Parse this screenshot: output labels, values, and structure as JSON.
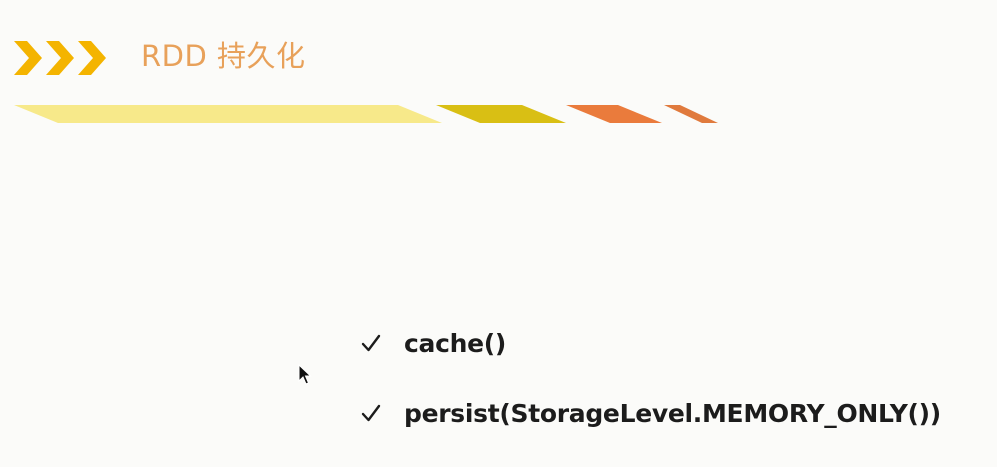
{
  "slide": {
    "title": "RDD 持久化"
  },
  "decor": {
    "chevron_color": "#f4b400",
    "title_color": "#e8a15a",
    "stripe_colors": [
      "#f7e98a",
      "#d9bf14",
      "#ea7b3c",
      "#e07a3d"
    ]
  },
  "bullets": [
    {
      "icon": "check-icon",
      "text": "cache()"
    },
    {
      "icon": "check-icon",
      "text": "persist(StorageLevel.MEMORY_ONLY())"
    }
  ]
}
